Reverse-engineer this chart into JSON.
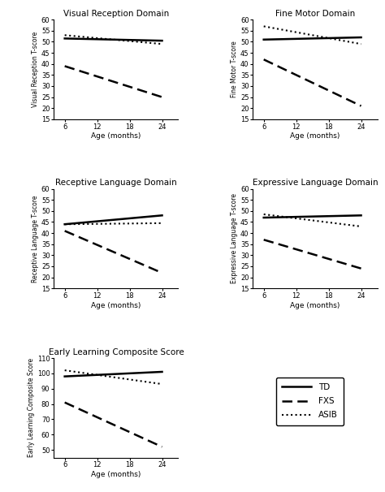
{
  "subplots": [
    {
      "title": "Visual Reception Domain",
      "ylabel": "Visual Reception T-score",
      "ylim": [
        15,
        60
      ],
      "yticks": [
        15,
        20,
        25,
        30,
        35,
        40,
        45,
        50,
        55,
        60
      ],
      "td": [
        51.5,
        50.5
      ],
      "asib": [
        53.0,
        49.0
      ],
      "fxs": [
        39.0,
        25.0
      ]
    },
    {
      "title": "Fine Motor Domain",
      "ylabel": "Fine Motor T-score",
      "ylim": [
        15,
        60
      ],
      "yticks": [
        15,
        20,
        25,
        30,
        35,
        40,
        45,
        50,
        55,
        60
      ],
      "td": [
        51.0,
        52.0
      ],
      "asib": [
        57.0,
        49.0
      ],
      "fxs": [
        42.0,
        21.0
      ]
    },
    {
      "title": "Receptive Language Domain",
      "ylabel": "Receptive Language T-score",
      "ylim": [
        15,
        60
      ],
      "yticks": [
        15,
        20,
        25,
        30,
        35,
        40,
        45,
        50,
        55,
        60
      ],
      "td": [
        44.0,
        48.0
      ],
      "asib": [
        44.0,
        44.5
      ],
      "fxs": [
        41.0,
        22.0
      ]
    },
    {
      "title": "Expressive Language Domain",
      "ylabel": "Expressive Language T-score",
      "ylim": [
        15,
        60
      ],
      "yticks": [
        15,
        20,
        25,
        30,
        35,
        40,
        45,
        50,
        55,
        60
      ],
      "td": [
        47.0,
        48.0
      ],
      "asib": [
        48.5,
        43.0
      ],
      "fxs": [
        37.0,
        24.0
      ]
    },
    {
      "title": "Early Learning Composite Score",
      "ylabel": "Early Learning Composite Score",
      "ylim": [
        45,
        110
      ],
      "yticks": [
        50,
        60,
        70,
        80,
        90,
        100,
        110
      ],
      "td": [
        98.0,
        101.0
      ],
      "asib": [
        102.0,
        93.0
      ],
      "fxs": [
        81.0,
        52.0
      ]
    }
  ],
  "x": [
    6,
    24
  ],
  "xticks": [
    6,
    12,
    18,
    24
  ],
  "xlabel": "Age (months)",
  "fig_background": "#ffffff",
  "title_fontsize": 7.5,
  "ylabel_fontsize": 5.5,
  "xlabel_fontsize": 6.5,
  "tick_fontsize": 6,
  "legend_fontsize": 7.5
}
